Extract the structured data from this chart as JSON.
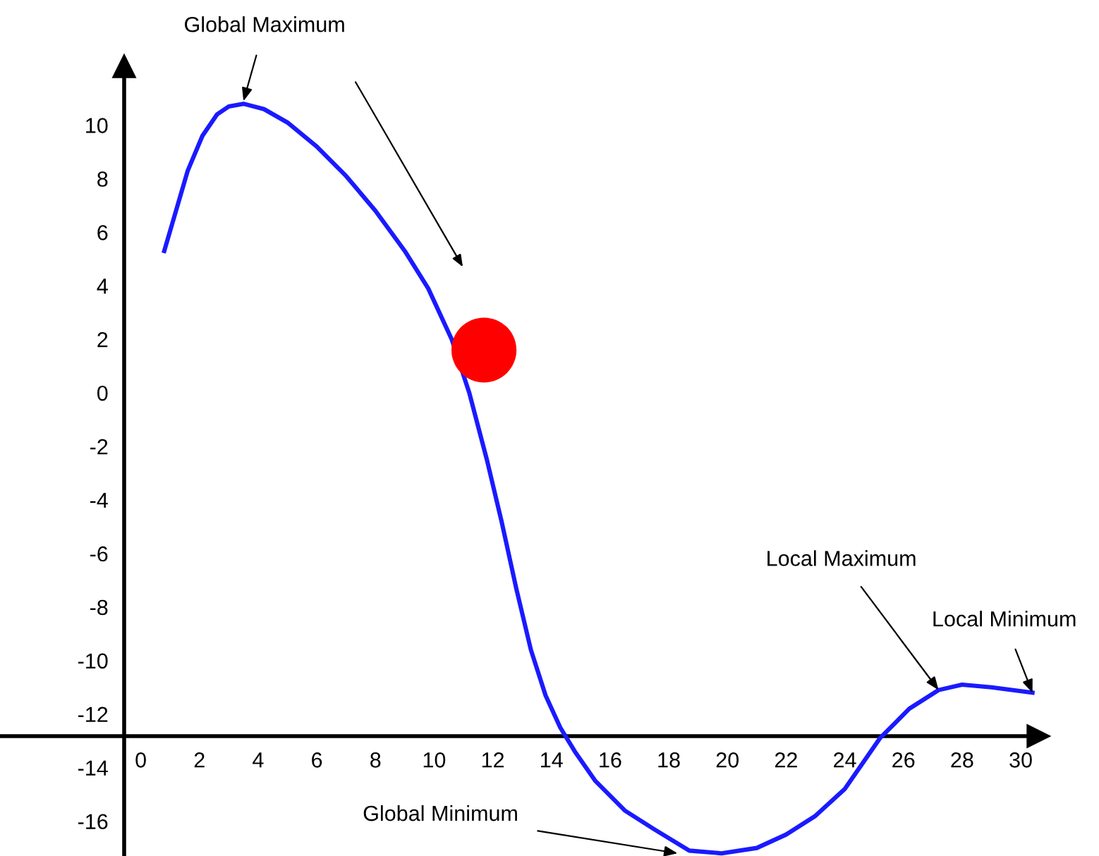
{
  "chart_data": {
    "type": "line",
    "xlim": [
      -4.8,
      30.6
    ],
    "ylim": [
      -17.3,
      12.2
    ],
    "xticks": [
      0,
      2,
      4,
      6,
      8,
      10,
      12,
      14,
      16,
      18,
      20,
      22,
      24,
      26,
      28,
      30
    ],
    "yticks": [
      -16,
      -14,
      -12,
      -10,
      -8,
      -6,
      -4,
      -2,
      0,
      2,
      4,
      6,
      8,
      10
    ],
    "grid": false,
    "legend": false,
    "line_style": "solid",
    "series": [
      {
        "marker": "none",
        "color": "#1a1aff",
        "x": [
          0.8,
          1.2,
          1.6,
          2.1,
          2.6,
          3.0,
          3.5,
          4.2,
          5.0,
          6.0,
          7.0,
          8.0,
          9.0,
          9.8,
          10.6,
          11.2,
          11.8,
          12.3,
          12.8,
          13.3,
          13.8,
          14.3,
          14.8,
          15.5,
          16.5,
          17.5,
          18.7,
          19.8,
          21.0,
          22.0,
          23.0,
          24.0,
          25.2,
          26.2,
          27.2,
          28.0,
          29.0,
          30.4
        ],
        "values": [
          5.3,
          6.8,
          8.3,
          9.6,
          10.4,
          10.7,
          10.8,
          10.6,
          10.1,
          9.2,
          8.1,
          6.8,
          5.3,
          3.9,
          2.0,
          0.0,
          -2.5,
          -4.8,
          -7.3,
          -9.6,
          -11.3,
          -12.5,
          -13.4,
          -14.5,
          -15.6,
          -16.3,
          -17.1,
          -17.2,
          -17.0,
          -16.5,
          -15.8,
          -14.8,
          -12.9,
          -11.8,
          -11.1,
          -10.9,
          -11.0,
          -11.2
        ]
      },
      {
        "type": "scatter",
        "marker": "circle",
        "color": "#ff0000",
        "x": [
          11.7
        ],
        "values": [
          1.6
        ]
      }
    ],
    "annotations": [
      {
        "text": "Global Maximum",
        "x": 3.5,
        "y": 10.9
      },
      {
        "text": "Local Maximum",
        "x": 27.2,
        "y": -11.1
      },
      {
        "text": "Local Minimum",
        "x": 30.4,
        "y": -11.2
      },
      {
        "text": "Global Minimum",
        "x": 18.3,
        "y": -17.2
      }
    ]
  }
}
